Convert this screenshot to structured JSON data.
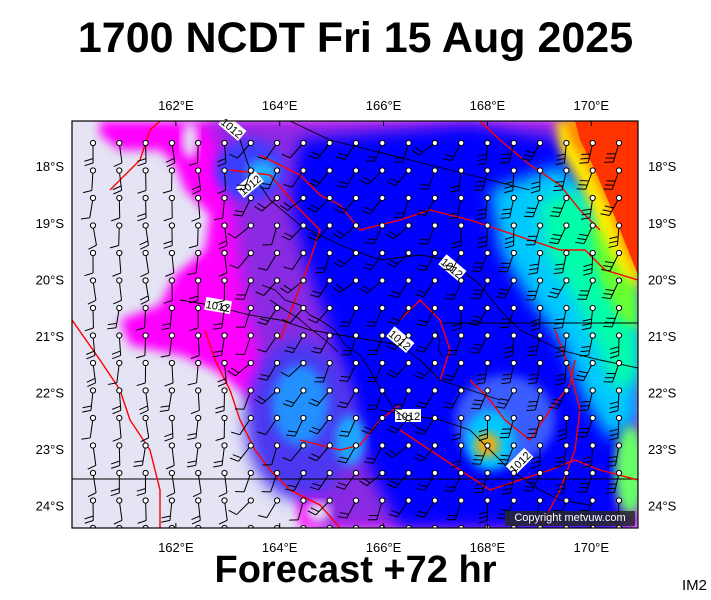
{
  "title": "1700 NCDT Fri 15 Aug 2025",
  "footer": "Forecast +72 hr",
  "tag": "IM2",
  "copyright": "Copyright metvuw.com",
  "lon_labels": [
    "162°E",
    "164°E",
    "166°E",
    "168°E",
    "170°E"
  ],
  "lon_values": [
    162,
    164,
    166,
    168,
    170
  ],
  "lat_labels": [
    "18°S",
    "19°S",
    "20°S",
    "21°S",
    "22°S",
    "23°S",
    "24°S"
  ],
  "lat_values": [
    -18,
    -19,
    -20,
    -21,
    -22,
    -23,
    -24
  ],
  "isobar_label": "1012",
  "extent": {
    "lon": [
      160.0,
      170.9
    ],
    "lat": [
      -17.2,
      -24.4
    ]
  },
  "colors": {
    "land": "#e4e4f4",
    "low": "#ff00ff",
    "mid": "#0000ff",
    "high": "#00ffff",
    "peak": "#ff4400",
    "boundary": "#ff0000"
  }
}
